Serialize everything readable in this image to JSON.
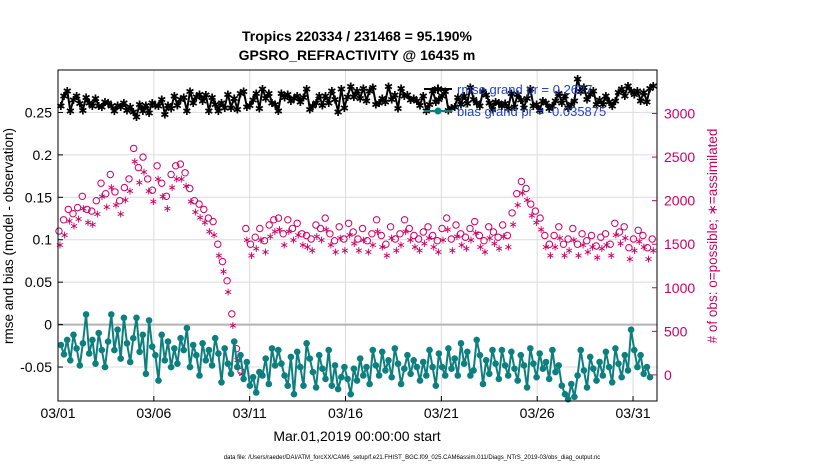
{
  "chart_data": {
    "type": "line",
    "title_line1": "Tropics 220334 / 231468 = 95.190%",
    "title_line2": "GPSRO_REFRACTIVITY @ 16435 m",
    "xlabel": "Mar.01,2019 00:00:00 start",
    "ylabel_left": "rmse and bias (model - observation)",
    "ylabel_right": "# of obs: o=possible; ∗=assimilated",
    "footer": "data file: /Users/raeder/DAI/ATM_forcXX/CAM6_setup/f.e21.FHIST_BGC.f09_025.CAM6assim.011/Diags_NTrS_2019-03/obs_diag_output.nc",
    "x_ticks": [
      "03/01",
      "03/06",
      "03/11",
      "03/16",
      "03/21",
      "03/26",
      "03/31"
    ],
    "x_tick_days": [
      0,
      5,
      10,
      15,
      20,
      25,
      30
    ],
    "xlim_days": [
      0,
      31.25
    ],
    "ylim_left": [
      -0.09,
      0.3
    ],
    "ylim_right": [
      -300,
      3500
    ],
    "y_ticks_left": [
      -0.05,
      0,
      0.05,
      0.1,
      0.15,
      0.2,
      0.25
    ],
    "y_tick_labels_left": [
      "-0.05",
      "0",
      "0.05",
      "0.1",
      "0.15",
      "0.2",
      "0.25"
    ],
    "y_ticks_right": [
      0,
      500,
      1000,
      1500,
      2000,
      2500,
      3000
    ],
    "y_tick_labels_right": [
      "0",
      "500",
      "1000",
      "1500",
      "2000",
      "2500",
      "3000"
    ],
    "legend": [
      {
        "label": "rmse grand pr = 0.2627",
        "color": "#000000"
      },
      {
        "label": "bias grand pr = -0.035875",
        "color": "#008080"
      }
    ],
    "colors": {
      "rmse": "#000000",
      "bias": "#0e7f7f",
      "obs": "#cc0066",
      "legend_text": "#1f3fd0",
      "zero_line": "#b3b3b3"
    },
    "series": [
      {
        "name": "rmse",
        "axis": "left",
        "marker": "star",
        "values": [
          0.258,
          0.27,
          0.276,
          0.252,
          0.265,
          0.27,
          0.261,
          0.253,
          0.268,
          0.262,
          0.258,
          0.267,
          0.258,
          0.257,
          0.263,
          0.262,
          0.258,
          0.252,
          0.259,
          0.257,
          0.262,
          0.253,
          0.257,
          0.251,
          0.245,
          0.26,
          0.252,
          0.259,
          0.25,
          0.262,
          0.259,
          0.258,
          0.266,
          0.248,
          0.259,
          0.255,
          0.27,
          0.259,
          0.266,
          0.268,
          0.252,
          0.275,
          0.262,
          0.269,
          0.272,
          0.264,
          0.271,
          0.252,
          0.268,
          0.26,
          0.252,
          0.262,
          0.256,
          0.272,
          0.256,
          0.267,
          0.254,
          0.273,
          0.275,
          0.257,
          0.259,
          0.265,
          0.273,
          0.255,
          0.278,
          0.267,
          0.273,
          0.262,
          0.26,
          0.252,
          0.273,
          0.268,
          0.272,
          0.264,
          0.267,
          0.27,
          0.263,
          0.268,
          0.278,
          0.254,
          0.258,
          0.262,
          0.27,
          0.259,
          0.27,
          0.262,
          0.276,
          0.266,
          0.251,
          0.278,
          0.256,
          0.269,
          0.281,
          0.269,
          0.276,
          0.267,
          0.279,
          0.264,
          0.276,
          0.28,
          0.26,
          0.262,
          0.267,
          0.263,
          0.281,
          0.266,
          0.271,
          0.255,
          0.279,
          0.27,
          0.271,
          0.265,
          0.267,
          0.264,
          0.259,
          0.27,
          0.252,
          0.26,
          0.276,
          0.263,
          0.266,
          0.27,
          0.275,
          0.253,
          0.256,
          0.257,
          0.268,
          0.26,
          0.27,
          0.261,
          0.28,
          0.266,
          0.262,
          0.258,
          0.275,
          0.271,
          0.262,
          0.254,
          0.263,
          0.262,
          0.258,
          0.261,
          0.255,
          0.273,
          0.257,
          0.272,
          0.265,
          0.256,
          0.267,
          0.278,
          0.258,
          0.26,
          0.253,
          0.264,
          0.262,
          0.255,
          0.258,
          0.264,
          0.273,
          0.262,
          0.27,
          0.256,
          0.26,
          0.264,
          0.29,
          0.275,
          0.28,
          0.266,
          0.272,
          0.276,
          0.26,
          0.265,
          0.26,
          0.27,
          0.263,
          0.258,
          0.264,
          0.274,
          0.278,
          0.27,
          0.282,
          0.276,
          0.272,
          0.276,
          0.264,
          0.274,
          0.263,
          0.279,
          0.282
        ]
      },
      {
        "name": "bias",
        "axis": "left",
        "marker": "dot",
        "values": [
          -0.024,
          -0.035,
          -0.018,
          -0.042,
          -0.012,
          -0.028,
          -0.048,
          -0.022,
          0.012,
          -0.034,
          -0.018,
          -0.046,
          -0.01,
          -0.03,
          -0.05,
          -0.02,
          0.012,
          -0.03,
          -0.006,
          -0.04,
          0.008,
          -0.022,
          -0.044,
          -0.016,
          0.008,
          -0.032,
          -0.012,
          -0.058,
          0.005,
          -0.026,
          -0.036,
          -0.066,
          -0.012,
          -0.042,
          -0.02,
          -0.05,
          -0.028,
          -0.046,
          -0.016,
          -0.03,
          -0.004,
          -0.05,
          -0.024,
          -0.036,
          -0.06,
          -0.022,
          -0.042,
          -0.03,
          -0.048,
          -0.016,
          -0.034,
          -0.068,
          -0.028,
          -0.046,
          -0.058,
          -0.02,
          -0.05,
          -0.036,
          -0.064,
          -0.044,
          -0.072,
          -0.062,
          -0.08,
          -0.056,
          -0.06,
          -0.04,
          -0.07,
          -0.028,
          -0.048,
          -0.03,
          -0.046,
          -0.06,
          -0.072,
          -0.038,
          -0.082,
          -0.032,
          -0.05,
          -0.072,
          -0.022,
          -0.04,
          -0.056,
          -0.074,
          -0.036,
          -0.052,
          -0.064,
          -0.03,
          -0.072,
          -0.048,
          -0.076,
          -0.062,
          -0.05,
          -0.064,
          -0.082,
          -0.052,
          -0.066,
          -0.04,
          -0.06,
          -0.05,
          -0.07,
          -0.03,
          -0.048,
          -0.06,
          -0.032,
          -0.054,
          -0.042,
          -0.062,
          -0.028,
          -0.046,
          -0.07,
          -0.052,
          -0.036,
          -0.058,
          -0.042,
          -0.05,
          -0.066,
          -0.044,
          -0.06,
          -0.03,
          -0.05,
          -0.072,
          -0.034,
          -0.05,
          -0.06,
          -0.028,
          -0.052,
          -0.04,
          -0.06,
          -0.022,
          -0.046,
          -0.032,
          -0.06,
          -0.054,
          -0.018,
          -0.036,
          -0.07,
          -0.042,
          -0.058,
          -0.03,
          -0.046,
          -0.064,
          -0.03,
          -0.048,
          -0.06,
          -0.032,
          -0.052,
          -0.066,
          -0.036,
          -0.048,
          -0.074,
          -0.028,
          -0.046,
          -0.062,
          -0.034,
          -0.052,
          -0.044,
          -0.064,
          -0.03,
          -0.056,
          -0.048,
          -0.072,
          -0.082,
          -0.088,
          -0.07,
          -0.085,
          -0.06,
          -0.03,
          -0.054,
          -0.074,
          -0.038,
          -0.052,
          -0.066,
          -0.044,
          -0.06,
          -0.032,
          -0.05,
          -0.068,
          -0.028,
          -0.046,
          -0.062,
          -0.036,
          -0.054,
          -0.006,
          -0.03,
          -0.05,
          -0.036,
          -0.058,
          -0.05,
          -0.062
        ]
      },
      {
        "name": "possible",
        "axis": "right",
        "marker": "circle",
        "values": [
          1650,
          1780,
          1900,
          1850,
          1920,
          2050,
          1900,
          1880,
          2000,
          2200,
          2080,
          2300,
          2100,
          2000,
          2150,
          2250,
          2600,
          2380,
          2500,
          2250,
          2120,
          2400,
          2200,
          2050,
          2300,
          2400,
          2420,
          2320,
          2140,
          2000,
          1960,
          1900,
          1800,
          1760,
          1500,
          1300,
          1080,
          700,
          300,
          40,
          1680,
          1500,
          1580,
          1680,
          1540,
          1720,
          1780,
          1800,
          1620,
          1780,
          1680,
          1740,
          1620,
          1600,
          1560,
          1720,
          1680,
          1800,
          1620,
          1540,
          1700,
          1560,
          1740,
          1640,
          1560,
          1680,
          1540,
          1620,
          1780,
          1600,
          1500,
          1700,
          1560,
          1620,
          1780,
          1680,
          1600,
          1560,
          1640,
          1700,
          1600,
          1540,
          1680,
          1800,
          1560,
          1720,
          1620,
          1580,
          1680,
          1760,
          1600,
          1540,
          1700,
          1640,
          1580,
          1720,
          1600,
          1860,
          2080,
          2220,
          2140,
          1960,
          1880,
          1800,
          1600,
          1500,
          1600,
          1700,
          1500,
          1560,
          1680,
          1500,
          1620,
          1540,
          1600,
          1480,
          1580,
          1620,
          1500,
          1740,
          1640,
          1700,
          1460,
          1560,
          1660,
          1600,
          1460,
          1560
        ]
      },
      {
        "name": "assimilated",
        "axis": "right",
        "marker": "star",
        "values": [
          1500,
          1620,
          1780,
          1720,
          1800,
          1920,
          1760,
          1740,
          1860,
          2060,
          1940,
          2160,
          1960,
          1860,
          2020,
          2120,
          2460,
          2220,
          2340,
          2120,
          2000,
          2260,
          2060,
          1920,
          2160,
          2260,
          2260,
          2180,
          2000,
          1880,
          1820,
          1760,
          1660,
          1620,
          1380,
          1200,
          960,
          580,
          180,
          20,
          1560,
          1380,
          1460,
          1560,
          1420,
          1600,
          1660,
          1680,
          1500,
          1660,
          1560,
          1620,
          1500,
          1480,
          1440,
          1600,
          1560,
          1680,
          1500,
          1420,
          1580,
          1440,
          1620,
          1520,
          1440,
          1560,
          1420,
          1500,
          1660,
          1480,
          1380,
          1580,
          1440,
          1500,
          1660,
          1560,
          1480,
          1440,
          1520,
          1580,
          1480,
          1420,
          1560,
          1680,
          1440,
          1600,
          1500,
          1460,
          1560,
          1640,
          1480,
          1420,
          1580,
          1520,
          1460,
          1600,
          1480,
          1740,
          1960,
          2100,
          2020,
          1840,
          1760,
          1680,
          1480,
          1380,
          1480,
          1580,
          1380,
          1440,
          1560,
          1380,
          1500,
          1420,
          1480,
          1360,
          1460,
          1500,
          1380,
          1620,
          1520,
          1580,
          1340,
          1440,
          1540,
          1480,
          1340,
          1440
        ]
      }
    ]
  }
}
